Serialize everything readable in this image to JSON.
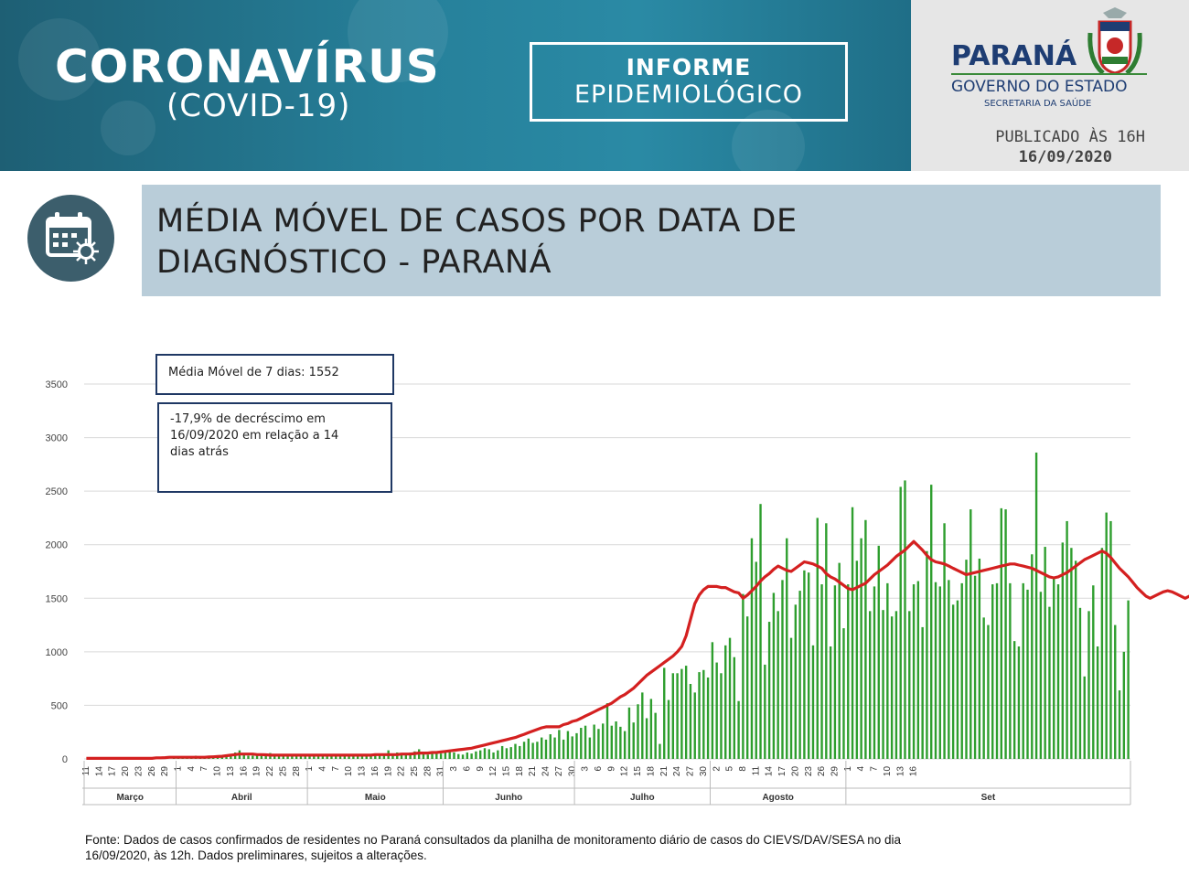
{
  "header": {
    "title": "CORONAVÍRUS",
    "subtitle": "(COVID-19)",
    "box_line1": "INFORME",
    "box_line2": "EPIDEMIOLÓGICO",
    "state_name": "PARANÁ",
    "government": "GOVERNO DO ESTADO",
    "secretariat": "SECRETARIA DA SAÚDE",
    "published_label": "PUBLICADO ÀS 16H",
    "published_date": "16/09/2020"
  },
  "section": {
    "title_line1": "MÉDIA MÓVEL DE CASOS POR DATA DE",
    "title_line2": "DIAGNÓSTICO - PARANÁ",
    "icon": "calendar-virus-icon"
  },
  "annotations": {
    "moving_average": "Média Móvel de 7 dias: 1552",
    "decrease_line1": "-17,9% de decréscimo em",
    "decrease_line2": "16/09/2020  em relação a 14",
    "decrease_line3": "dias atrás"
  },
  "footer": {
    "source_line1": "Fonte: Dados de casos confirmados de residentes no Paraná consultados da planilha de monitoramento diário de casos do CIEVS/DAV/SESA no dia",
    "source_line2": "16/09/2020, às 12h. Dados preliminares, sujeitos a alterações."
  },
  "colors": {
    "bar": "#2e9e2e",
    "line": "#d42020",
    "grid": "#d9d9d9",
    "banner": "#26809a",
    "title_bg": "#b9cdd9"
  },
  "chart_data": {
    "type": "bar",
    "ylim": [
      0,
      3500
    ],
    "yticks": [
      0,
      500,
      1000,
      1500,
      2000,
      2500,
      3000,
      3500
    ],
    "grid": true,
    "x_tick_labels": [
      "11",
      "14",
      "17",
      "20",
      "23",
      "26",
      "29",
      "1",
      "4",
      "7",
      "10",
      "13",
      "16",
      "19",
      "22",
      "25",
      "28",
      "1",
      "4",
      "7",
      "10",
      "13",
      "16",
      "19",
      "22",
      "25",
      "28",
      "31",
      "3",
      "6",
      "9",
      "12",
      "15",
      "18",
      "21",
      "24",
      "27",
      "30",
      "3",
      "6",
      "9",
      "12",
      "15",
      "18",
      "21",
      "24",
      "27",
      "30",
      "2",
      "5",
      "8",
      "11",
      "14",
      "17",
      "20",
      "23",
      "26",
      "29",
      "1",
      "4",
      "7",
      "10",
      "13",
      "16"
    ],
    "months": [
      "Março",
      "Abril",
      "Maio",
      "Junho",
      "Julho",
      "Agosto",
      "Set"
    ],
    "series": [
      {
        "type": "bar",
        "values": [
          0,
          0,
          0,
          0,
          0,
          0,
          0,
          0,
          0,
          0,
          0,
          0,
          0,
          0,
          0,
          0,
          0,
          0,
          0,
          0,
          5,
          10,
          15,
          10,
          20,
          30,
          25,
          20,
          15,
          30,
          25,
          20,
          30,
          40,
          60,
          80,
          45,
          30,
          30,
          35,
          40,
          50,
          55,
          40,
          30,
          35,
          25,
          30,
          40,
          45,
          35,
          30,
          40,
          40,
          35,
          30,
          40,
          30,
          35,
          30,
          35,
          30,
          25,
          40,
          30,
          35,
          45,
          40,
          50,
          80,
          40,
          60,
          45,
          50,
          60,
          70,
          90,
          50,
          40,
          60,
          70,
          50,
          60,
          80,
          60,
          45,
          40,
          60,
          50,
          70,
          80,
          100,
          90,
          60,
          80,
          120,
          100,
          110,
          140,
          120,
          160,
          190,
          150,
          160,
          200,
          180,
          230,
          200,
          270,
          180,
          260,
          210,
          240,
          290,
          310,
          200,
          320,
          280,
          330,
          520,
          310,
          350,
          300,
          260,
          480,
          340,
          510,
          620,
          380,
          560,
          430,
          140,
          850,
          550,
          800,
          800,
          840,
          870,
          700,
          620,
          810,
          830,
          760,
          1090,
          900,
          800,
          1060,
          1130,
          950,
          540,
          1540,
          1330,
          2060,
          1840,
          2380,
          880,
          1280,
          1550,
          1380,
          1670,
          2060,
          1130,
          1440,
          1570,
          1760,
          1740,
          1060,
          2250,
          1630,
          2200,
          1050,
          1620,
          1830,
          1220,
          1630,
          2350,
          1850,
          2060,
          2230,
          1380,
          1610,
          1990,
          1390,
          1640,
          1330,
          1380,
          2540,
          2600,
          1380,
          1630,
          1660,
          1230,
          1940,
          2560,
          1650,
          1610,
          2200,
          1670,
          1440,
          1480,
          1640,
          1860,
          2330,
          1710,
          1870,
          1320,
          1250,
          1630,
          1640,
          2340,
          2330,
          1640,
          1100,
          1050,
          1640,
          1580,
          1910,
          2860,
          1560,
          1980,
          1420,
          1690,
          1630,
          2020,
          2220,
          1970,
          1850,
          1410,
          770,
          1380,
          1620,
          1050,
          1970,
          2300,
          2220,
          1250,
          640,
          1000,
          1480
        ]
      },
      {
        "type": "line",
        "values": [
          5,
          5,
          5,
          5,
          5,
          5,
          5,
          5,
          5,
          5,
          5,
          5,
          5,
          5,
          5,
          5,
          10,
          10,
          12,
          15,
          15,
          15,
          15,
          15,
          15,
          15,
          15,
          15,
          18,
          20,
          22,
          25,
          30,
          35,
          40,
          45,
          45,
          45,
          45,
          40,
          40,
          38,
          35,
          35,
          35,
          35,
          35,
          35,
          35,
          35,
          35,
          35,
          35,
          35,
          35,
          35,
          35,
          35,
          35,
          35,
          35,
          35,
          35,
          35,
          35,
          35,
          40,
          40,
          40,
          40,
          40,
          40,
          45,
          45,
          45,
          50,
          55,
          55,
          55,
          60,
          60,
          65,
          70,
          75,
          80,
          85,
          90,
          95,
          100,
          110,
          120,
          130,
          140,
          150,
          160,
          170,
          180,
          190,
          200,
          215,
          230,
          245,
          260,
          275,
          290,
          300,
          300,
          300,
          300,
          320,
          330,
          350,
          360,
          380,
          400,
          420,
          440,
          460,
          480,
          500,
          520,
          550,
          580,
          600,
          630,
          660,
          700,
          740,
          780,
          810,
          840,
          870,
          900,
          930,
          960,
          1000,
          1050,
          1150,
          1300,
          1450,
          1530,
          1580,
          1610,
          1610,
          1610,
          1600,
          1600,
          1580,
          1560,
          1550,
          1500,
          1530,
          1570,
          1610,
          1660,
          1700,
          1730,
          1770,
          1800,
          1780,
          1760,
          1750,
          1780,
          1810,
          1840,
          1830,
          1820,
          1800,
          1780,
          1730,
          1700,
          1680,
          1650,
          1620,
          1590,
          1580,
          1600,
          1620,
          1640,
          1680,
          1720,
          1750,
          1780,
          1810,
          1850,
          1890,
          1920,
          1950,
          1990,
          2030,
          1990,
          1950,
          1900,
          1860,
          1840,
          1830,
          1820,
          1800,
          1780,
          1760,
          1740,
          1720,
          1730,
          1740,
          1750,
          1760,
          1770,
          1780,
          1790,
          1800,
          1810,
          1820,
          1820,
          1810,
          1800,
          1790,
          1780,
          1760,
          1740,
          1720,
          1700,
          1690,
          1700,
          1720,
          1740,
          1770,
          1800,
          1830,
          1860,
          1880,
          1900,
          1920,
          1940,
          1920,
          1880,
          1830,
          1780,
          1740,
          1700,
          1650,
          1600,
          1560,
          1520,
          1500,
          1520,
          1540,
          1560,
          1570,
          1560,
          1540,
          1520,
          1500,
          1520,
          1540,
          1552
        ]
      }
    ]
  }
}
